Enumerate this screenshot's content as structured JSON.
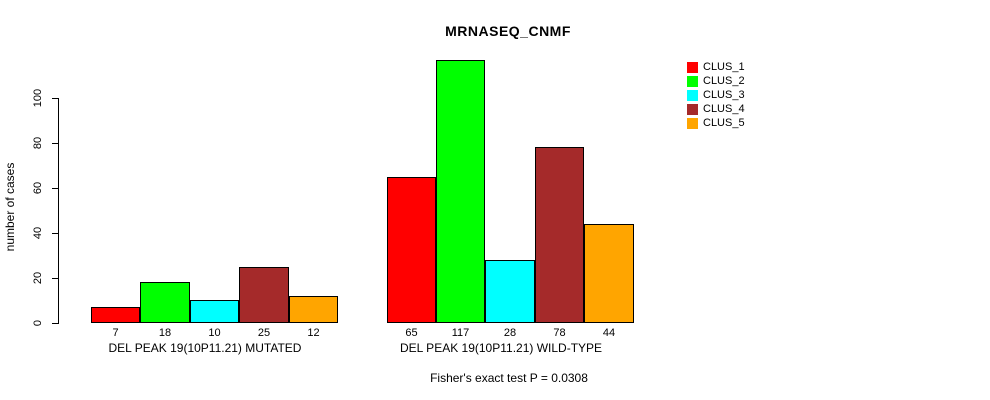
{
  "title": "MRNASEQ_CNMF",
  "y_axis": {
    "label": "number of cases",
    "ticks": [
      0,
      20,
      40,
      60,
      80,
      100
    ]
  },
  "footer": "Fisher's exact test P = 0.0308",
  "legend": {
    "items": [
      {
        "label": "CLUS_1",
        "color": "#ff0000"
      },
      {
        "label": "CLUS_2",
        "color": "#00ff00"
      },
      {
        "label": "CLUS_3",
        "color": "#00ffff"
      },
      {
        "label": "CLUS_4",
        "color": "#a52a2a"
      },
      {
        "label": "CLUS_5",
        "color": "#ffa500"
      }
    ]
  },
  "chart_data": {
    "type": "bar",
    "title": "MRNASEQ_CNMF",
    "ylabel": "number of cases",
    "xlabel": "",
    "ylim": [
      0,
      120
    ],
    "yticks": [
      0,
      20,
      40,
      60,
      80,
      100
    ],
    "grid": false,
    "legend_position": "top-right",
    "series": [
      "CLUS_1",
      "CLUS_2",
      "CLUS_3",
      "CLUS_4",
      "CLUS_5"
    ],
    "series_colors": [
      "#ff0000",
      "#00ff00",
      "#00ffff",
      "#a52a2a",
      "#ffa500"
    ],
    "groups": [
      {
        "category": "DEL PEAK 19(10P11.21) MUTATED",
        "values": [
          7,
          18,
          10,
          25,
          12
        ]
      },
      {
        "category": "DEL PEAK 19(10P11.21) WILD-TYPE",
        "values": [
          65,
          117,
          28,
          78,
          44
        ]
      }
    ],
    "bar_value_labels": true,
    "annotation": "Fisher's exact test P = 0.0308"
  }
}
